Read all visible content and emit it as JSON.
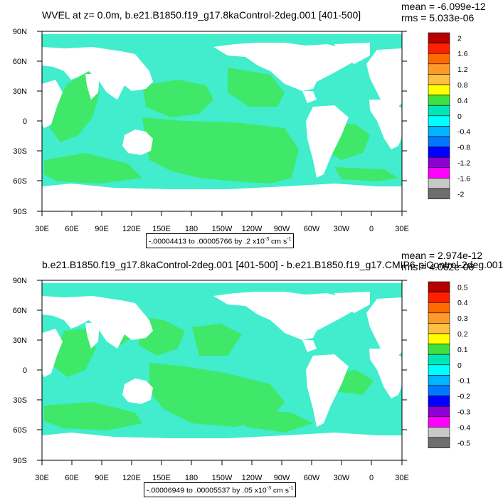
{
  "panels": [
    {
      "title": "WVEL at z=   0.0m, b.e21.B1850.f19_g17.8kaControl-2deg.001 [401-500]",
      "mean": "mean = -6.099e-12",
      "rms": "rms = 5.033e-06",
      "range_pre": "-.00004413 to .00005766 by .2 x10",
      "range_exp": "-3",
      "range_mid": " cm s",
      "range_exp2": "-1",
      "lat_labels": [
        "90N",
        "60N",
        "30N",
        "0",
        "30S",
        "60S",
        "90S"
      ],
      "lon_labels": [
        "30E",
        "60E",
        "90E",
        "120E",
        "150E",
        "180",
        "150W",
        "120W",
        "90W",
        "60W",
        "30W",
        "0",
        "30E"
      ],
      "colorbar_labels": [
        "2",
        "1.6",
        "1.2",
        "0.8",
        "0.4",
        "0",
        "-0.4",
        "-0.8",
        "-1.2",
        "-1.6",
        "-2"
      ]
    },
    {
      "title": "b.e21.B1850.f19_g17.8kaControl-2deg.001 [401-500] - b.e21.B1850.f19_g17.CMIP6-piControl-2deg.001",
      "mean": "mean = 2.974e-12",
      "rms": "rms = 4.062e-06",
      "range_pre": "-.00006949 to .00005537 by .05 x10",
      "range_exp": "-3",
      "range_mid": " cm s",
      "range_exp2": "-1",
      "lat_labels": [
        "90N",
        "60N",
        "30N",
        "0",
        "30S",
        "60S",
        "90S"
      ],
      "lon_labels": [
        "30E",
        "60E",
        "90E",
        "120E",
        "150E",
        "180",
        "150W",
        "120W",
        "90W",
        "60W",
        "30W",
        "0",
        "30E"
      ],
      "colorbar_labels": [
        "0.5",
        "0.4",
        "0.3",
        "0.2",
        "0.1",
        "0",
        "-0.1",
        "-0.2",
        "-0.3",
        "-0.4",
        "-0.5"
      ]
    }
  ],
  "colors": {
    "colorbar": [
      "#b40000",
      "#ff2000",
      "#ff6a00",
      "#ff9a2a",
      "#ffbf40",
      "#ffff00",
      "#40e040",
      "#00e6b4",
      "#00ffff",
      "#00b4ff",
      "#0078ff",
      "#0000ff",
      "#8c00d2",
      "#ff00ff",
      "#c8c8c8",
      "#6e6e6e"
    ],
    "ocean_green": "#3fe868",
    "ocean_cyan": "#41edcd",
    "land": "#ffffff"
  }
}
